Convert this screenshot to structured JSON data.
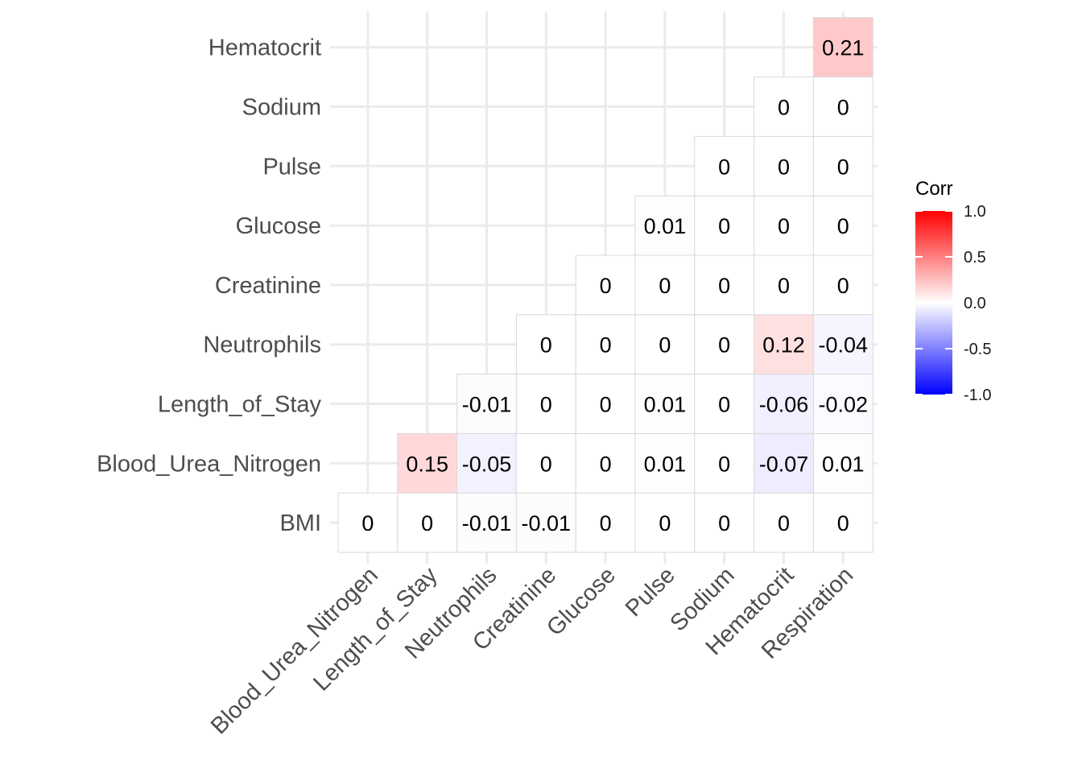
{
  "chart_data": {
    "type": "heatmap",
    "x_categories": [
      "Blood_Urea_Nitrogen",
      "Length_of_Stay",
      "Neutrophils",
      "Creatinine",
      "Glucose",
      "Pulse",
      "Sodium",
      "Hematocrit",
      "Respiration"
    ],
    "y_categories": [
      "BMI",
      "Blood_Urea_Nitrogen",
      "Length_of_Stay",
      "Neutrophils",
      "Creatinine",
      "Glucose",
      "Pulse",
      "Sodium",
      "Hematocrit"
    ],
    "cells": [
      {
        "x": "Blood_Urea_Nitrogen",
        "y": "BMI",
        "value": 0,
        "label": "0"
      },
      {
        "x": "Length_of_Stay",
        "y": "BMI",
        "value": 0,
        "label": "0"
      },
      {
        "x": "Neutrophils",
        "y": "BMI",
        "value": -0.01,
        "label": "-0.01"
      },
      {
        "x": "Creatinine",
        "y": "BMI",
        "value": -0.01,
        "label": "-0.01"
      },
      {
        "x": "Glucose",
        "y": "BMI",
        "value": 0,
        "label": "0"
      },
      {
        "x": "Pulse",
        "y": "BMI",
        "value": 0,
        "label": "0"
      },
      {
        "x": "Sodium",
        "y": "BMI",
        "value": 0,
        "label": "0"
      },
      {
        "x": "Hematocrit",
        "y": "BMI",
        "value": 0,
        "label": "0"
      },
      {
        "x": "Respiration",
        "y": "BMI",
        "value": 0,
        "label": "0"
      },
      {
        "x": "Length_of_Stay",
        "y": "Blood_Urea_Nitrogen",
        "value": 0.15,
        "label": "0.15"
      },
      {
        "x": "Neutrophils",
        "y": "Blood_Urea_Nitrogen",
        "value": -0.05,
        "label": "-0.05"
      },
      {
        "x": "Creatinine",
        "y": "Blood_Urea_Nitrogen",
        "value": 0,
        "label": "0"
      },
      {
        "x": "Glucose",
        "y": "Blood_Urea_Nitrogen",
        "value": 0,
        "label": "0"
      },
      {
        "x": "Pulse",
        "y": "Blood_Urea_Nitrogen",
        "value": 0.01,
        "label": "0.01"
      },
      {
        "x": "Sodium",
        "y": "Blood_Urea_Nitrogen",
        "value": 0,
        "label": "0"
      },
      {
        "x": "Hematocrit",
        "y": "Blood_Urea_Nitrogen",
        "value": -0.07,
        "label": "-0.07"
      },
      {
        "x": "Respiration",
        "y": "Blood_Urea_Nitrogen",
        "value": 0.01,
        "label": "0.01"
      },
      {
        "x": "Neutrophils",
        "y": "Length_of_Stay",
        "value": -0.01,
        "label": "-0.01"
      },
      {
        "x": "Creatinine",
        "y": "Length_of_Stay",
        "value": 0,
        "label": "0"
      },
      {
        "x": "Glucose",
        "y": "Length_of_Stay",
        "value": 0,
        "label": "0"
      },
      {
        "x": "Pulse",
        "y": "Length_of_Stay",
        "value": 0.01,
        "label": "0.01"
      },
      {
        "x": "Sodium",
        "y": "Length_of_Stay",
        "value": 0,
        "label": "0"
      },
      {
        "x": "Hematocrit",
        "y": "Length_of_Stay",
        "value": -0.06,
        "label": "-0.06"
      },
      {
        "x": "Respiration",
        "y": "Length_of_Stay",
        "value": -0.02,
        "label": "-0.02"
      },
      {
        "x": "Creatinine",
        "y": "Neutrophils",
        "value": 0,
        "label": "0"
      },
      {
        "x": "Glucose",
        "y": "Neutrophils",
        "value": 0,
        "label": "0"
      },
      {
        "x": "Pulse",
        "y": "Neutrophils",
        "value": 0,
        "label": "0"
      },
      {
        "x": "Sodium",
        "y": "Neutrophils",
        "value": 0,
        "label": "0"
      },
      {
        "x": "Hematocrit",
        "y": "Neutrophils",
        "value": 0.12,
        "label": "0.12"
      },
      {
        "x": "Respiration",
        "y": "Neutrophils",
        "value": -0.04,
        "label": "-0.04"
      },
      {
        "x": "Glucose",
        "y": "Creatinine",
        "value": 0,
        "label": "0"
      },
      {
        "x": "Pulse",
        "y": "Creatinine",
        "value": 0,
        "label": "0"
      },
      {
        "x": "Sodium",
        "y": "Creatinine",
        "value": 0,
        "label": "0"
      },
      {
        "x": "Hematocrit",
        "y": "Creatinine",
        "value": 0,
        "label": "0"
      },
      {
        "x": "Respiration",
        "y": "Creatinine",
        "value": 0,
        "label": "0"
      },
      {
        "x": "Pulse",
        "y": "Glucose",
        "value": 0.01,
        "label": "0.01"
      },
      {
        "x": "Sodium",
        "y": "Glucose",
        "value": 0,
        "label": "0"
      },
      {
        "x": "Hematocrit",
        "y": "Glucose",
        "value": 0,
        "label": "0"
      },
      {
        "x": "Respiration",
        "y": "Glucose",
        "value": 0,
        "label": "0"
      },
      {
        "x": "Sodium",
        "y": "Pulse",
        "value": 0,
        "label": "0"
      },
      {
        "x": "Hematocrit",
        "y": "Pulse",
        "value": 0,
        "label": "0"
      },
      {
        "x": "Respiration",
        "y": "Pulse",
        "value": 0,
        "label": "0"
      },
      {
        "x": "Hematocrit",
        "y": "Sodium",
        "value": 0,
        "label": "0"
      },
      {
        "x": "Respiration",
        "y": "Sodium",
        "value": 0,
        "label": "0"
      },
      {
        "x": "Respiration",
        "y": "Hematocrit",
        "value": 0.21,
        "label": "0.21"
      }
    ],
    "legend": {
      "title": "Corr",
      "range": [
        -1.0,
        1.0
      ],
      "ticks": [
        "1.0",
        "0.5",
        "0.0",
        "-0.5",
        "-1.0"
      ],
      "tick_values": [
        1.0,
        0.5,
        0.0,
        -0.5,
        -1.0
      ],
      "colors": {
        "low": "#0000ff",
        "mid": "#ffffff",
        "high": "#ff0000"
      },
      "placement": "right"
    },
    "grid": true,
    "title": "",
    "xlabel": "",
    "ylabel": ""
  }
}
